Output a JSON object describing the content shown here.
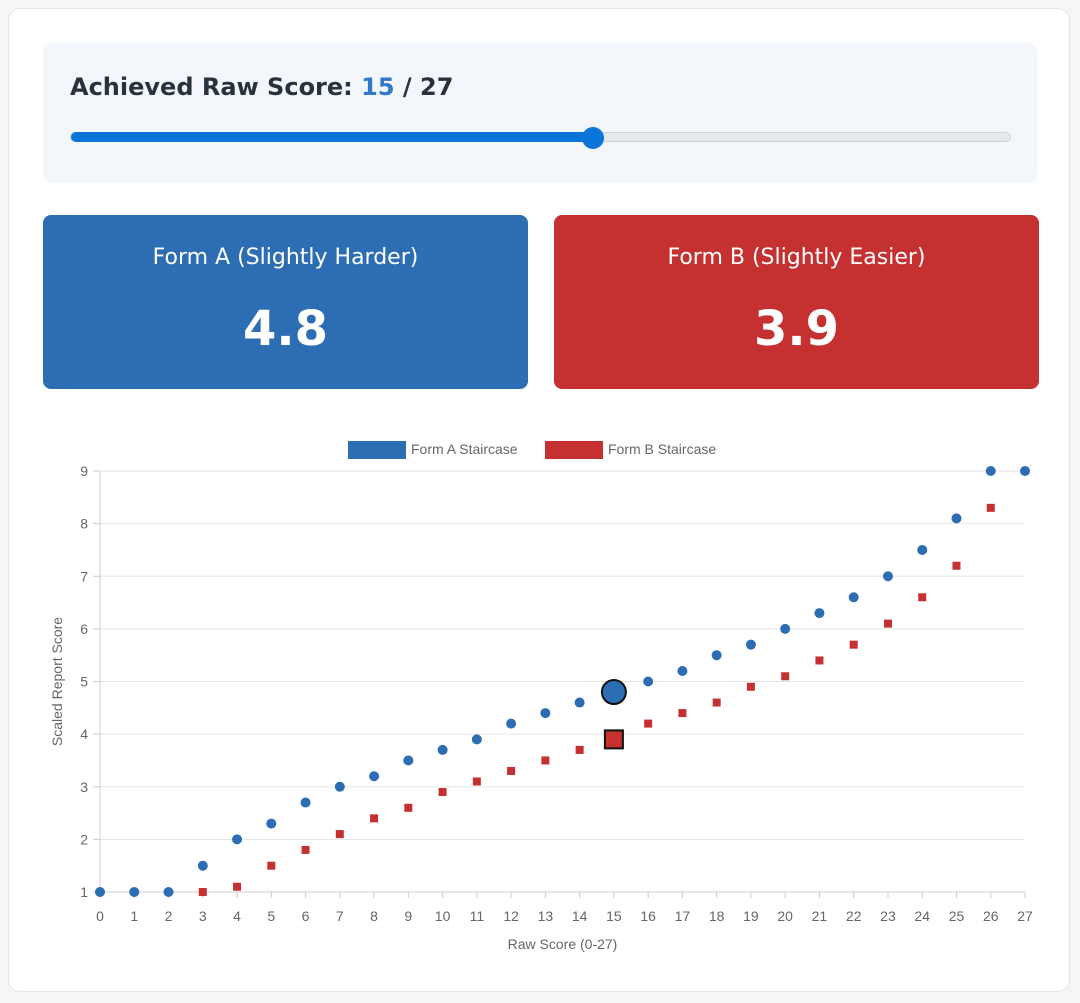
{
  "score": {
    "label": "Achieved Raw Score:",
    "value": 15,
    "separator": "/",
    "max": 27
  },
  "forms": [
    {
      "label": "Form A (Slightly Harder)",
      "value": "4.8",
      "color": "#2d6db3"
    },
    {
      "label": "Form B (Slightly Easier)",
      "value": "3.9",
      "color": "#c53031"
    }
  ],
  "chart_data": {
    "type": "scatter",
    "xlabel": "Raw Score (0-27)",
    "ylabel": "Scaled Report Score",
    "xlim": [
      0,
      27
    ],
    "ylim": [
      1,
      9
    ],
    "x_ticks": [
      0,
      1,
      2,
      3,
      4,
      5,
      6,
      7,
      8,
      9,
      10,
      11,
      12,
      13,
      14,
      15,
      16,
      17,
      18,
      19,
      20,
      21,
      22,
      23,
      24,
      25,
      26,
      27
    ],
    "y_ticks": [
      1,
      2,
      3,
      4,
      5,
      6,
      7,
      8,
      9
    ],
    "grid": true,
    "legend_position": "top-center",
    "series": [
      {
        "name": "Form A Staircase",
        "color": "#2d6db3",
        "marker": "circle",
        "x": [
          0,
          1,
          2,
          3,
          4,
          5,
          6,
          7,
          8,
          9,
          10,
          11,
          12,
          13,
          14,
          16,
          17,
          18,
          19,
          20,
          21,
          22,
          23,
          24,
          25,
          26,
          27
        ],
        "y": [
          1,
          1,
          1,
          1.5,
          2,
          2.3,
          2.7,
          3,
          3.2,
          3.5,
          3.7,
          3.9,
          4.2,
          4.4,
          4.6,
          5,
          5.2,
          5.5,
          5.7,
          6,
          6.3,
          6.6,
          7,
          7.5,
          8.1,
          9,
          9
        ]
      },
      {
        "name": "Form B Staircase",
        "color": "#c53031",
        "marker": "square",
        "x": [
          3,
          4,
          5,
          6,
          7,
          8,
          9,
          10,
          11,
          12,
          13,
          14,
          16,
          17,
          18,
          19,
          20,
          21,
          22,
          23,
          24,
          25,
          26
        ],
        "y": [
          1,
          1.1,
          1.5,
          1.8,
          2.1,
          2.4,
          2.6,
          2.9,
          3.1,
          3.3,
          3.5,
          3.7,
          4.2,
          4.4,
          4.6,
          4.9,
          5.1,
          5.4,
          5.7,
          6.1,
          6.6,
          7.2,
          8.3
        ]
      }
    ],
    "highlight": [
      {
        "series": "Form A Staircase",
        "x": 15,
        "y": 4.8,
        "marker": "circle"
      },
      {
        "series": "Form B Staircase",
        "x": 15,
        "y": 3.9,
        "marker": "square"
      }
    ]
  }
}
